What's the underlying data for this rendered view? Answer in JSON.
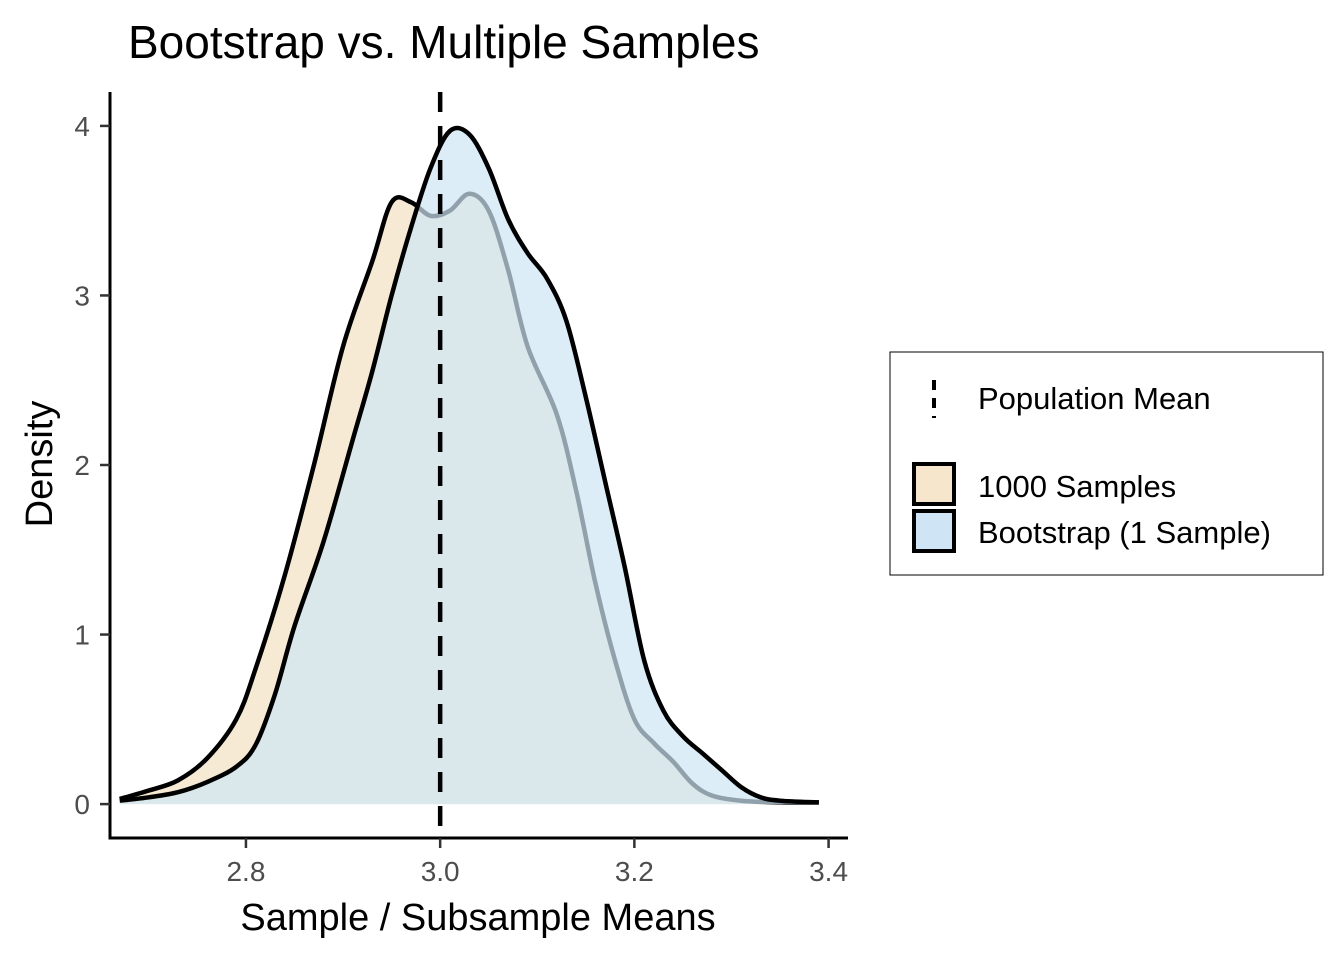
{
  "chart_data": {
    "type": "area",
    "title": "Bootstrap vs. Multiple Samples",
    "xlabel": "Sample / Subsample Means",
    "ylabel": "Density",
    "xlim": [
      2.66,
      3.42
    ],
    "ylim": [
      -0.2,
      4.2
    ],
    "xticks": [
      {
        "value": 2.8,
        "label": "2.8"
      },
      {
        "value": 3.0,
        "label": "3.0"
      },
      {
        "value": 3.2,
        "label": "3.2"
      },
      {
        "value": 3.4,
        "label": "3.4"
      }
    ],
    "yticks": [
      {
        "value": 0,
        "label": "0"
      },
      {
        "value": 1,
        "label": "1"
      },
      {
        "value": 2,
        "label": "2"
      },
      {
        "value": 3,
        "label": "3"
      },
      {
        "value": 4,
        "label": "4"
      }
    ],
    "reference_line": {
      "name": "Population Mean",
      "x": 3.0,
      "style": "dashed",
      "color": "#000000"
    },
    "series": [
      {
        "name": "1000 Samples",
        "fill": "#f5e6cc",
        "fill_opacity": 0.85,
        "stroke": "#000000",
        "points": [
          [
            2.67,
            0.03
          ],
          [
            2.7,
            0.08
          ],
          [
            2.73,
            0.14
          ],
          [
            2.76,
            0.27
          ],
          [
            2.79,
            0.5
          ],
          [
            2.81,
            0.8
          ],
          [
            2.84,
            1.35
          ],
          [
            2.87,
            2.0
          ],
          [
            2.9,
            2.7
          ],
          [
            2.93,
            3.2
          ],
          [
            2.95,
            3.55
          ],
          [
            2.97,
            3.55
          ],
          [
            2.99,
            3.47
          ],
          [
            3.01,
            3.5
          ],
          [
            3.03,
            3.6
          ],
          [
            3.05,
            3.5
          ],
          [
            3.07,
            3.15
          ],
          [
            3.09,
            2.7
          ],
          [
            3.12,
            2.3
          ],
          [
            3.14,
            1.85
          ],
          [
            3.16,
            1.3
          ],
          [
            3.18,
            0.85
          ],
          [
            3.2,
            0.5
          ],
          [
            3.22,
            0.36
          ],
          [
            3.24,
            0.25
          ],
          [
            3.26,
            0.12
          ],
          [
            3.28,
            0.05
          ],
          [
            3.31,
            0.02
          ],
          [
            3.35,
            0.01
          ],
          [
            3.39,
            0.01
          ]
        ]
      },
      {
        "name": "Bootstrap (1 Sample)",
        "fill": "#cfe5f5",
        "fill_opacity": 0.7,
        "stroke": "#000000",
        "points": [
          [
            2.67,
            0.02
          ],
          [
            2.7,
            0.04
          ],
          [
            2.73,
            0.07
          ],
          [
            2.76,
            0.13
          ],
          [
            2.79,
            0.22
          ],
          [
            2.81,
            0.35
          ],
          [
            2.83,
            0.65
          ],
          [
            2.85,
            1.05
          ],
          [
            2.88,
            1.55
          ],
          [
            2.91,
            2.15
          ],
          [
            2.93,
            2.55
          ],
          [
            2.95,
            3.0
          ],
          [
            2.97,
            3.4
          ],
          [
            2.99,
            3.75
          ],
          [
            3.01,
            3.97
          ],
          [
            3.03,
            3.95
          ],
          [
            3.05,
            3.75
          ],
          [
            3.07,
            3.45
          ],
          [
            3.09,
            3.25
          ],
          [
            3.11,
            3.1
          ],
          [
            3.13,
            2.85
          ],
          [
            3.15,
            2.4
          ],
          [
            3.17,
            1.9
          ],
          [
            3.19,
            1.4
          ],
          [
            3.21,
            0.85
          ],
          [
            3.23,
            0.55
          ],
          [
            3.25,
            0.4
          ],
          [
            3.27,
            0.3
          ],
          [
            3.29,
            0.2
          ],
          [
            3.31,
            0.1
          ],
          [
            3.33,
            0.04
          ],
          [
            3.35,
            0.02
          ],
          [
            3.39,
            0.01
          ]
        ]
      }
    ],
    "legend": {
      "position": "right",
      "line_entry": "Population Mean",
      "fill_entries": [
        "1000 Samples",
        "Bootstrap (1 Sample)"
      ]
    }
  }
}
